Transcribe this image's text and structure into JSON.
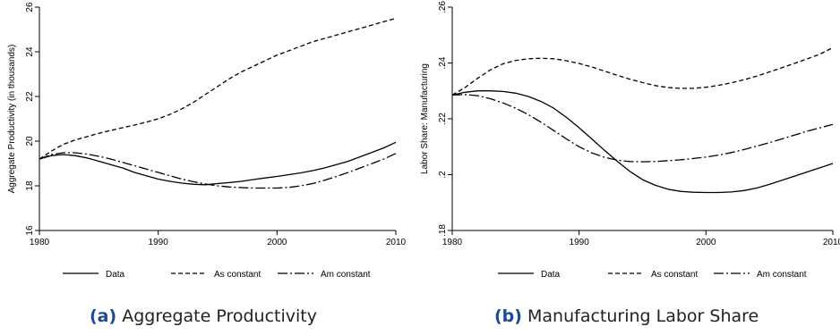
{
  "chart_data": [
    {
      "type": "line",
      "caption_tag": "(a)",
      "caption": "Aggregate Productivity",
      "ylabel": "Aggregate Productivity (in thousands)",
      "xlabel": "",
      "xlim": [
        1980,
        2010
      ],
      "ylim": [
        16,
        26
      ],
      "xticks": [
        1980,
        1990,
        2000,
        2010
      ],
      "yticks": [
        16,
        18,
        20,
        22,
        24,
        26
      ],
      "ytick_labels": [
        "16",
        "18",
        "20",
        "22",
        "24",
        "26"
      ],
      "grid": false,
      "legend": "bottom",
      "x": [
        1980,
        1981,
        1982,
        1983,
        1984,
        1985,
        1986,
        1987,
        1988,
        1989,
        1990,
        1991,
        1992,
        1993,
        1994,
        1995,
        1996,
        1997,
        1998,
        1999,
        2000,
        2001,
        2002,
        2003,
        2004,
        2005,
        2006,
        2007,
        2008,
        2009,
        2010
      ],
      "series": [
        {
          "name": "Data",
          "dash": "solid",
          "values": [
            19.2,
            19.35,
            19.4,
            19.35,
            19.25,
            19.1,
            18.95,
            18.8,
            18.6,
            18.45,
            18.3,
            18.2,
            18.12,
            18.07,
            18.05,
            18.1,
            18.15,
            18.2,
            18.28,
            18.35,
            18.42,
            18.5,
            18.58,
            18.68,
            18.8,
            18.95,
            19.1,
            19.3,
            19.5,
            19.7,
            19.95
          ]
        },
        {
          "name": "As constant",
          "dash": "dashed",
          "values": [
            19.2,
            19.55,
            19.85,
            20.05,
            20.2,
            20.35,
            20.48,
            20.6,
            20.72,
            20.85,
            21.0,
            21.2,
            21.45,
            21.75,
            22.1,
            22.45,
            22.8,
            23.1,
            23.35,
            23.6,
            23.85,
            24.05,
            24.25,
            24.45,
            24.6,
            24.75,
            24.9,
            25.05,
            25.2,
            25.35,
            25.5
          ]
        },
        {
          "name": "Am constant",
          "dash": "dashdot",
          "values": [
            19.2,
            19.4,
            19.48,
            19.48,
            19.42,
            19.32,
            19.2,
            19.05,
            18.9,
            18.75,
            18.6,
            18.45,
            18.3,
            18.18,
            18.08,
            18.0,
            17.95,
            17.92,
            17.9,
            17.9,
            17.9,
            17.93,
            18.0,
            18.1,
            18.25,
            18.42,
            18.6,
            18.8,
            19.0,
            19.2,
            19.45
          ]
        }
      ]
    },
    {
      "type": "line",
      "caption_tag": "(b)",
      "caption": "Manufacturing Labor Share",
      "ylabel": "Labor Share: Manufacturing",
      "xlabel": "",
      "xlim": [
        1980,
        2010
      ],
      "ylim": [
        0.18,
        0.26
      ],
      "xticks": [
        1980,
        1990,
        2000,
        2010
      ],
      "yticks": [
        0.18,
        0.2,
        0.22,
        0.24,
        0.26
      ],
      "ytick_labels": [
        ".18",
        ".2",
        ".22",
        ".24",
        ".26"
      ],
      "grid": false,
      "legend": "bottom",
      "x": [
        1980,
        1981,
        1982,
        1983,
        1984,
        1985,
        1986,
        1987,
        1988,
        1989,
        1990,
        1991,
        1992,
        1993,
        1994,
        1995,
        1996,
        1997,
        1998,
        1999,
        2000,
        2001,
        2002,
        2003,
        2004,
        2005,
        2006,
        2007,
        2008,
        2009,
        2010
      ],
      "series": [
        {
          "name": "Data",
          "dash": "solid",
          "values": [
            0.2285,
            0.2295,
            0.23,
            0.23,
            0.2298,
            0.2292,
            0.228,
            0.2262,
            0.2238,
            0.2205,
            0.2168,
            0.2128,
            0.2087,
            0.2048,
            0.2012,
            0.1982,
            0.1962,
            0.1948,
            0.194,
            0.1937,
            0.1936,
            0.1936,
            0.1938,
            0.1943,
            0.1952,
            0.1965,
            0.198,
            0.1995,
            0.201,
            0.2025,
            0.204
          ]
        },
        {
          "name": "As constant",
          "dash": "dashed",
          "values": [
            0.2285,
            0.2312,
            0.2345,
            0.2375,
            0.2397,
            0.2409,
            0.2415,
            0.2417,
            0.2415,
            0.2408,
            0.2398,
            0.2386,
            0.2371,
            0.2356,
            0.2342,
            0.233,
            0.2319,
            0.2312,
            0.2309,
            0.2309,
            0.2313,
            0.232,
            0.2329,
            0.234,
            0.2353,
            0.2368,
            0.2383,
            0.2399,
            0.2415,
            0.2432,
            0.2455
          ]
        },
        {
          "name": "Am constant",
          "dash": "dashdot",
          "values": [
            0.2285,
            0.2287,
            0.2283,
            0.2272,
            0.2257,
            0.2238,
            0.2215,
            0.2188,
            0.2158,
            0.2128,
            0.21,
            0.2078,
            0.2062,
            0.2052,
            0.2047,
            0.2046,
            0.2047,
            0.205,
            0.2053,
            0.2058,
            0.2063,
            0.207,
            0.2079,
            0.209,
            0.2102,
            0.2115,
            0.2128,
            0.2142,
            0.2156,
            0.2168,
            0.218
          ]
        }
      ]
    }
  ]
}
